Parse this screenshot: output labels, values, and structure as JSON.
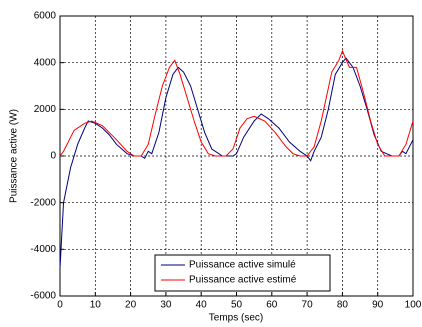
{
  "chart_data": {
    "type": "line",
    "xlabel": "Temps (sec)",
    "ylabel": "Puissance active (W)",
    "xlim": [
      0,
      100
    ],
    "xticks": [
      0,
      10,
      20,
      30,
      40,
      50,
      60,
      70,
      80,
      90,
      100
    ],
    "ylim": [
      -6000,
      6000
    ],
    "yticks": [
      -6000,
      -4000,
      -2000,
      0,
      2000,
      4000,
      6000
    ],
    "grid": true,
    "legend": "lower center",
    "series": [
      {
        "name": "Puissance active simulé",
        "color": "#000080",
        "x": [
          0,
          1,
          3,
          5,
          7,
          8,
          10,
          12,
          14,
          16,
          19,
          21,
          23,
          24,
          25,
          26,
          28,
          30,
          32,
          33.5,
          35,
          37,
          39,
          41,
          43,
          46,
          49,
          50,
          52,
          55,
          57,
          59,
          62,
          65,
          68,
          70,
          71,
          72,
          74,
          76,
          78,
          80,
          81,
          83,
          85,
          87,
          89,
          91,
          94,
          96,
          97,
          98,
          100
        ],
        "values": [
          -4800,
          -2000,
          -500,
          500,
          1200,
          1500,
          1400,
          1200,
          900,
          500,
          100,
          0,
          0,
          -100,
          200,
          100,
          1000,
          2500,
          3500,
          3800,
          3600,
          3000,
          2000,
          1000,
          300,
          0,
          0,
          100,
          800,
          1500,
          1800,
          1600,
          1200,
          600,
          200,
          0,
          -200,
          200,
          800,
          2000,
          3500,
          4000,
          4200,
          3800,
          3000,
          2000,
          900,
          200,
          0,
          0,
          200,
          100,
          700
        ]
      },
      {
        "name": "Puissance active estimé",
        "color": "#ff0000",
        "x": [
          0,
          1,
          4,
          7,
          9,
          12,
          16,
          19,
          21,
          23,
          25,
          27,
          29,
          31,
          32.5,
          34,
          36,
          38,
          40,
          42,
          44,
          47,
          49,
          51,
          53,
          55,
          58,
          61,
          64,
          66,
          68,
          70,
          72,
          74,
          77,
          79,
          80,
          82,
          84,
          86,
          88,
          90,
          92,
          96,
          98,
          100
        ],
        "values": [
          0,
          200,
          1100,
          1400,
          1500,
          1300,
          700,
          200,
          0,
          0,
          500,
          1800,
          3000,
          3800,
          4100,
          3500,
          2500,
          1500,
          600,
          100,
          0,
          0,
          300,
          1200,
          1600,
          1700,
          1500,
          1000,
          400,
          100,
          0,
          0,
          400,
          1500,
          3600,
          4100,
          4500,
          3800,
          3800,
          2700,
          1500,
          500,
          0,
          0,
          500,
          1500
        ]
      }
    ]
  }
}
